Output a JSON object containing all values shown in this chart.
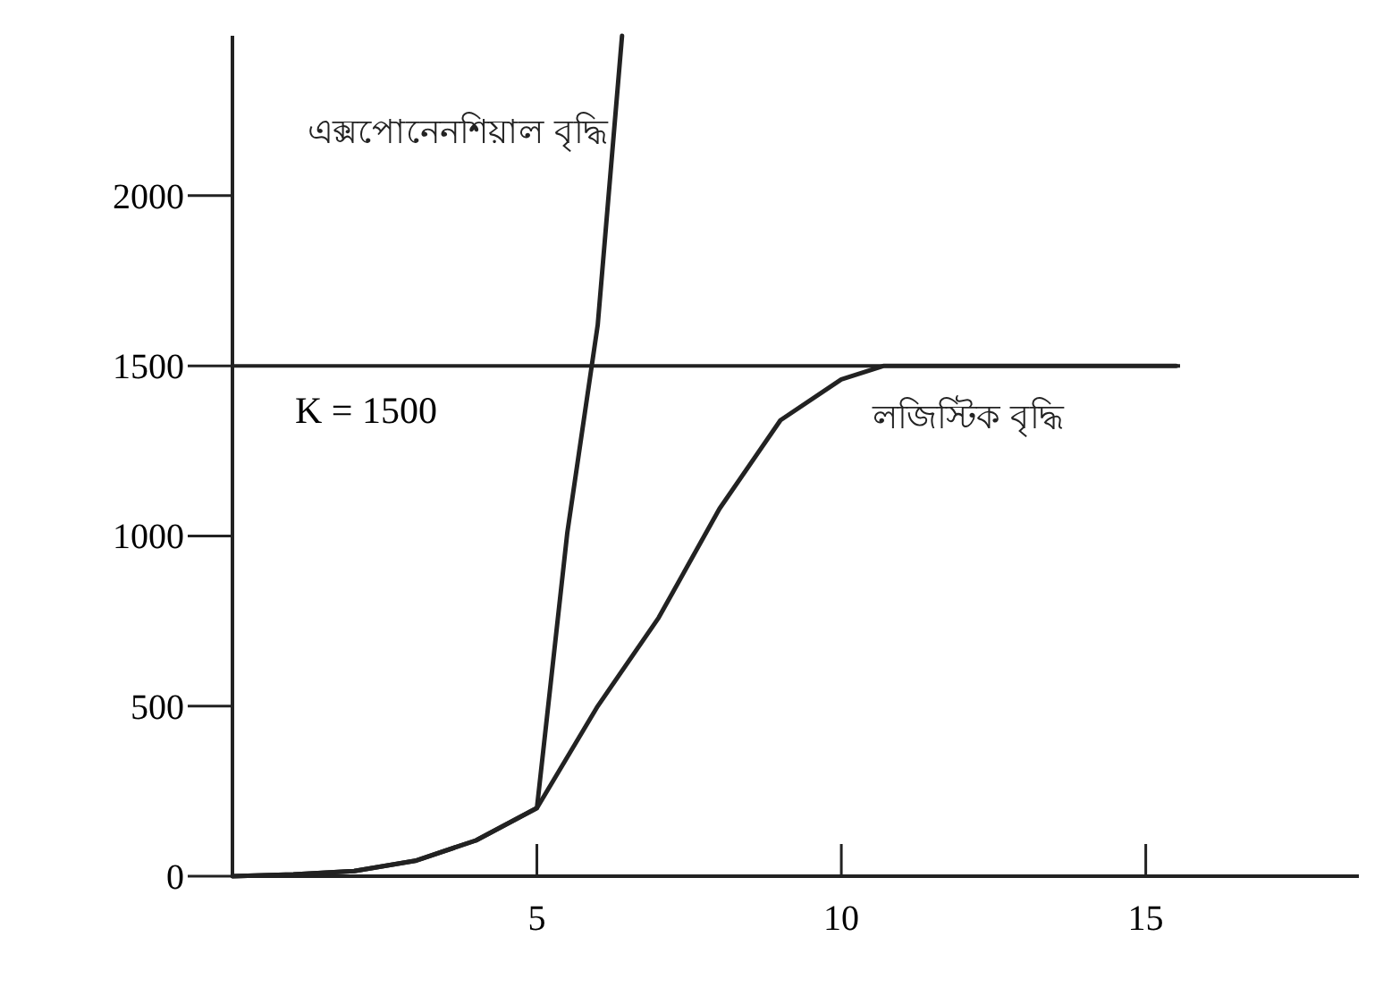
{
  "chart_data": {
    "type": "line",
    "xlim": [
      0,
      18.5
    ],
    "ylim": [
      0,
      2470
    ],
    "xticks": [
      5,
      10,
      15
    ],
    "yticks": [
      0,
      500,
      1000,
      1500,
      2000
    ],
    "grid": false,
    "marker": "none",
    "line_style": "solid",
    "ref_lines": [
      {
        "axis": "y",
        "value": 1500,
        "label": "K = 1500",
        "color": "#222222"
      }
    ],
    "series": [
      {
        "name": "এক্সপোনেনশিয়াল বৃদ্ধি",
        "color": "#222222",
        "x": [
          0,
          1,
          2,
          3,
          4,
          5,
          5.5,
          6,
          6.4
        ],
        "values": [
          0,
          5,
          15,
          45,
          105,
          200,
          1010,
          1620,
          2470
        ]
      },
      {
        "name": "লজিস্টিক বৃদ্ধি",
        "color": "#222222",
        "x": [
          0,
          1,
          2,
          3,
          4,
          5,
          6,
          7,
          8,
          9,
          10,
          10.7,
          15.5
        ],
        "values": [
          0,
          5,
          15,
          45,
          105,
          200,
          500,
          760,
          1080,
          1340,
          1460,
          1500,
          1500
        ]
      }
    ]
  }
}
